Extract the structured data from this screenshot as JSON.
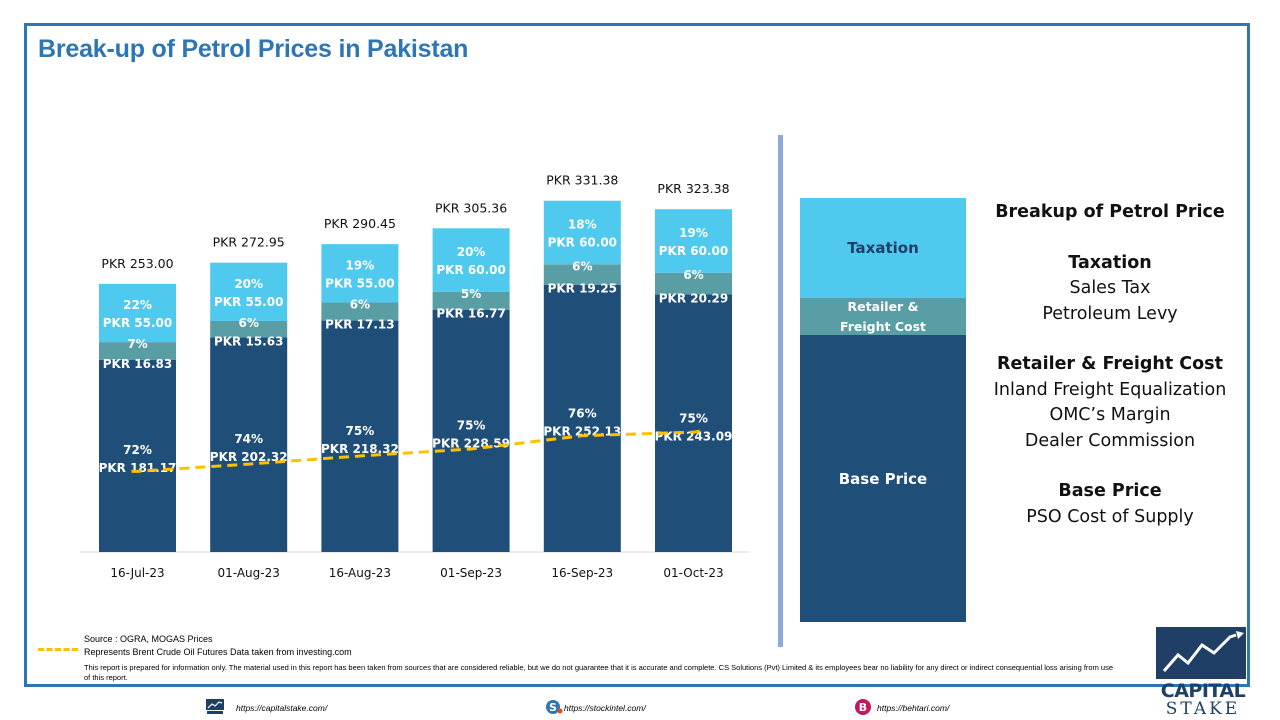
{
  "title": "Break-up of Petrol Prices in Pakistan",
  "colors": {
    "base": "#1f4e79",
    "retailer": "#5a9ea5",
    "taxation": "#4fc9ee",
    "brent_line": "#ffc000",
    "accent": "#2e75b6"
  },
  "chart_data": {
    "type": "bar",
    "stacked": true,
    "categories": [
      "16-Jul-23",
      "01-Aug-23",
      "16-Aug-23",
      "01-Sep-23",
      "16-Sep-23",
      "01-Oct-23"
    ],
    "totals": [
      "PKR 253.00",
      "PKR 272.95",
      "PKR 290.45",
      "PKR 305.36",
      "PKR 331.38",
      "PKR 323.38"
    ],
    "total_values": [
      253.0,
      272.95,
      290.45,
      305.36,
      331.38,
      323.38
    ],
    "series": [
      {
        "key": "base",
        "values": [
          181.17,
          202.32,
          218.32,
          228.59,
          252.13,
          243.09
        ],
        "labels": [
          "PKR 181.17",
          "PKR 202.32",
          "PKR 218.32",
          "PKR 228.59",
          "PKR 252.13",
          "PKR 243.09"
        ],
        "percents": [
          "72%",
          "74%",
          "75%",
          "75%",
          "76%",
          "75%"
        ]
      },
      {
        "key": "retailer",
        "values": [
          16.83,
          15.63,
          17.13,
          16.77,
          19.25,
          20.29
        ],
        "labels": [
          "PKR 16.83",
          "PKR 15.63",
          "PKR 17.13",
          "PKR 16.77",
          "PKR 19.25",
          "PKR 20.29"
        ],
        "percents": [
          "7%",
          "6%",
          "6%",
          "5%",
          "6%",
          "6%"
        ]
      },
      {
        "key": "taxation",
        "values": [
          55.0,
          55.0,
          55.0,
          60.0,
          60.0,
          60.0
        ],
        "labels": [
          "PKR 55.00",
          "PKR 55.00",
          "PKR 55.00",
          "PKR 60.00",
          "PKR 60.00",
          "PKR 60.00"
        ],
        "percents": [
          "22%",
          "20%",
          "19%",
          "20%",
          "18%",
          "19%"
        ]
      }
    ],
    "brent_line_relative": [
      0.42,
      0.41,
      0.415,
      0.425,
      0.435,
      0.465
    ],
    "ylim": [
      0,
      360
    ]
  },
  "legend_bar": {
    "taxation": "Taxation",
    "retailer_line1": "Retailer &",
    "retailer_line2": "Freight Cost",
    "base": "Base Price"
  },
  "explanation": {
    "heading": "Breakup of Petrol Price",
    "taxation_heading": "Taxation",
    "taxation_items": [
      "Sales Tax",
      "Petroleum Levy"
    ],
    "retailer_heading": "Retailer & Freight Cost",
    "retailer_items": [
      "Inland Freight Equalization",
      "OMC’s Margin",
      "Dealer Commission"
    ],
    "base_heading": "Base Price",
    "base_items": [
      "PSO Cost of Supply"
    ]
  },
  "footer": {
    "source": "Source : OGRA, MOGAS Prices",
    "legend_text": "Represents Brent Crude Oil Futures Data taken from investing.com",
    "disclaimer": "This report is prepared for information only. The material used in this report has been taken from sources that are considered reliable, but we do not guarantee that it is accurate and complete. CS Solutions (Pvt) Limited & its employees bear no liability for any direct or indirect consequential loss arising from use of this report.",
    "link1": "https://capitalstake.com/",
    "link2": "https://stockintel.com/",
    "link3": "https://behtari.com/",
    "logo_line1": "CAPITAL",
    "logo_line2": "STAKE"
  }
}
